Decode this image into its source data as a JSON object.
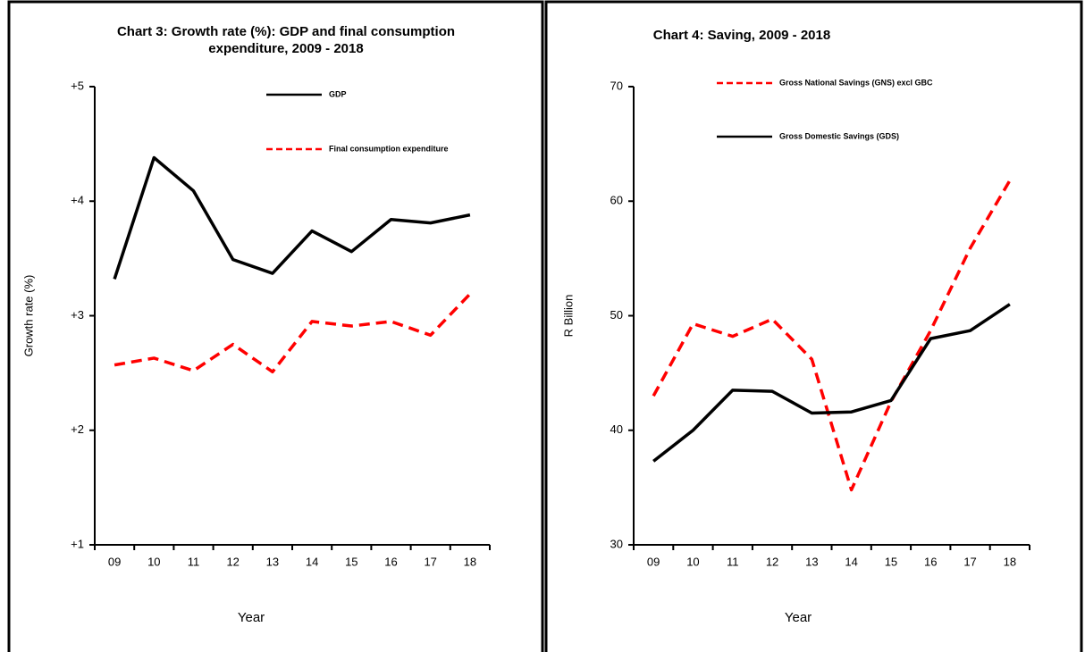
{
  "chart_data": [
    {
      "type": "line",
      "title": "Chart 3: Growth rate (%): GDP and final consumption expenditure, 2009 - 2018",
      "xlabel": "Year",
      "ylabel": "Growth rate (%)",
      "categories": [
        "09",
        "10",
        "11",
        "12",
        "13",
        "14",
        "15",
        "16",
        "17",
        "18"
      ],
      "series": [
        {
          "name": "GDP",
          "color": "#000000",
          "style": "solid",
          "values": [
            3.32,
            4.38,
            4.09,
            3.49,
            3.37,
            3.74,
            3.56,
            3.84,
            3.81,
            3.88
          ]
        },
        {
          "name": "Final consumption expenditure",
          "color": "#ff0000",
          "style": "dashed",
          "values": [
            2.57,
            2.63,
            2.52,
            2.75,
            2.51,
            2.95,
            2.91,
            2.95,
            2.83,
            3.19
          ]
        }
      ],
      "ylim": [
        1,
        5
      ],
      "yticks": [
        {
          "value": 1,
          "label": "+1"
        },
        {
          "value": 2,
          "label": "+2"
        },
        {
          "value": 3,
          "label": "+3"
        },
        {
          "value": 4,
          "label": "+4"
        },
        {
          "value": 5,
          "label": "+5"
        }
      ]
    },
    {
      "type": "line",
      "title": "Chart 4: Saving, 2009 - 2018",
      "xlabel": "Year",
      "ylabel": "R Billion",
      "categories": [
        "09",
        "10",
        "11",
        "12",
        "13",
        "14",
        "15",
        "16",
        "17",
        "18"
      ],
      "series": [
        {
          "name": "Gross National Savings (GNS) excl GBC",
          "color": "#ff0000",
          "style": "dashed",
          "values": [
            43.0,
            49.3,
            48.2,
            49.7,
            46.2,
            34.8,
            42.5,
            48.7,
            55.9,
            61.8
          ]
        },
        {
          "name": "Gross Domestic Savings (GDS)",
          "color": "#000000",
          "style": "solid",
          "values": [
            37.3,
            40.0,
            43.5,
            43.4,
            41.5,
            41.6,
            42.6,
            48.0,
            48.7,
            51.0
          ]
        }
      ],
      "ylim": [
        30,
        70
      ],
      "yticks": [
        30,
        40,
        50,
        60,
        70
      ]
    }
  ]
}
